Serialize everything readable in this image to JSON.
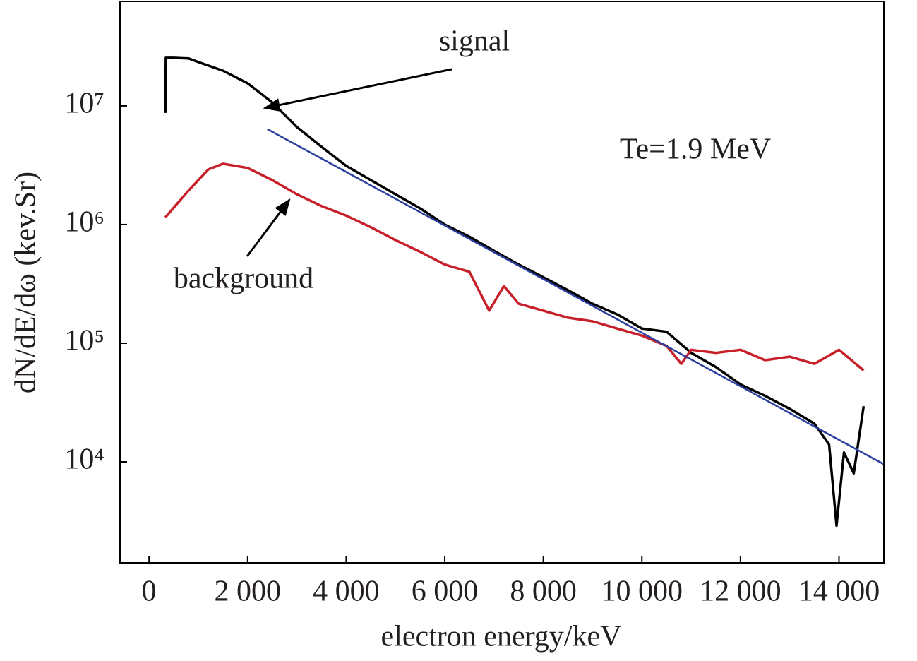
{
  "chart_data": {
    "type": "line",
    "yscale": "log",
    "xlabel": "electron energy/keV",
    "ylabel": "dN/dE/dω (kev.Sr)",
    "xlim": [
      -590,
      14910
    ],
    "ylim": [
      1410,
      78000000
    ],
    "xticks": [
      0,
      {
        "value": 2000,
        "label": "2 000"
      },
      {
        "value": 4000,
        "label": "4 000"
      },
      {
        "value": 6000,
        "label": "6 000"
      },
      {
        "value": 8000,
        "label": "8 000"
      },
      {
        "value": 10000,
        "label": "10 000"
      },
      {
        "value": 12000,
        "label": "12 000"
      },
      {
        "value": 14000,
        "label": "14 000"
      }
    ],
    "yticks": [
      {
        "value": 10000,
        "label": "10⁴"
      },
      {
        "value": 100000,
        "label": "10⁵"
      },
      {
        "value": 1000000,
        "label": "10⁶"
      },
      {
        "value": 10000000,
        "label": "10⁷"
      }
    ],
    "series": [
      {
        "name": "signal",
        "color": "#000000",
        "x": [
          330,
          340,
          500,
          800,
          1000,
          1500,
          2000,
          2500,
          3000,
          3500,
          4000,
          4500,
          5000,
          5500,
          6000,
          6500,
          7000,
          7500,
          8000,
          8500,
          9000,
          9500,
          10000,
          10500,
          11000,
          11500,
          12000,
          12500,
          13000,
          13500,
          13800,
          13950,
          14100,
          14300,
          14500
        ],
        "values": [
          8720000,
          25400000,
          25400000,
          25100000,
          23400000,
          19800000,
          15500000,
          10700000,
          6630000,
          4520000,
          3120000,
          2370000,
          1800000,
          1370000,
          1000000,
          790000,
          600000,
          460000,
          360000,
          280000,
          215000,
          175000,
          133000,
          125000,
          83000,
          63000,
          45000,
          36000,
          28000,
          21000,
          14000,
          2900,
          12000,
          8000,
          29500
        ]
      },
      {
        "name": "background",
        "color": "#c8202a",
        "x": [
          330,
          800,
          1200,
          1500,
          2000,
          2500,
          3000,
          3500,
          4000,
          4500,
          5000,
          5500,
          6000,
          6500,
          6900,
          7200,
          7500,
          8000,
          8500,
          9000,
          9500,
          10000,
          10500,
          10800,
          11000,
          11500,
          12000,
          12500,
          13000,
          13500,
          14000,
          14500
        ],
        "values": [
          1150000,
          1930000,
          2910000,
          3250000,
          3000000,
          2370000,
          1800000,
          1430000,
          1190000,
          950000,
          740000,
          590000,
          460000,
          400000,
          188000,
          303000,
          215000,
          188000,
          164000,
          153000,
          133000,
          116000,
          95000,
          67000,
          88000,
          83000,
          88000,
          72000,
          77000,
          67000,
          88000,
          59000
        ]
      },
      {
        "color": "#2a3f9e",
        "x": [
          2400,
          14900
        ],
        "values": [
          6370000,
          9600
        ]
      }
    ],
    "annotations": [
      "Te=1.9 MeV"
    ]
  }
}
